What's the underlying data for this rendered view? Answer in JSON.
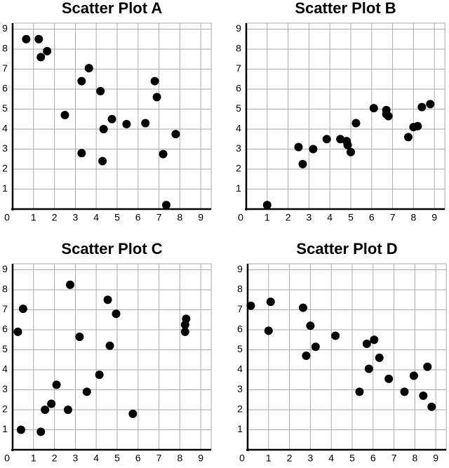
{
  "chart_data": [
    {
      "type": "scatter",
      "title": "Scatter Plot A",
      "x": [
        0.65,
        1.25,
        1.35,
        1.65,
        2.5,
        3.3,
        3.65,
        3.3,
        4.2,
        4.35,
        4.3,
        4.75,
        5.45,
        6.35,
        6.8,
        6.9,
        7.2,
        7.8,
        7.35
      ],
      "y": [
        8.5,
        8.5,
        7.6,
        7.9,
        4.7,
        6.4,
        7.05,
        2.8,
        5.9,
        4.0,
        2.4,
        4.5,
        4.25,
        4.3,
        6.4,
        5.6,
        2.75,
        3.75,
        0.2
      ],
      "color": "#000000",
      "xlim": [
        0,
        9.5
      ],
      "ylim": [
        0,
        9.3
      ],
      "xticks": [
        0,
        1,
        2,
        3,
        4,
        5,
        6,
        7,
        8,
        9
      ],
      "yticks": [
        1,
        2,
        3,
        4,
        5,
        6,
        7,
        8,
        9
      ],
      "grid": true
    },
    {
      "type": "scatter",
      "title": "Scatter Plot B",
      "x": [
        1.0,
        2.5,
        2.7,
        3.2,
        3.85,
        4.5,
        4.8,
        4.85,
        5.0,
        5.25,
        6.1,
        6.7,
        6.7,
        6.8,
        7.75,
        8.0,
        8.2,
        8.4,
        8.8
      ],
      "y": [
        0.2,
        3.1,
        2.25,
        3.0,
        3.5,
        3.5,
        3.4,
        3.2,
        2.85,
        4.3,
        5.05,
        4.95,
        4.75,
        4.65,
        3.6,
        4.1,
        4.15,
        5.1,
        5.25
      ],
      "color": "#000000",
      "xlim": [
        0,
        9.5
      ],
      "ylim": [
        0,
        9.3
      ],
      "xticks": [
        0,
        1,
        2,
        3,
        4,
        5,
        6,
        7,
        8,
        9
      ],
      "yticks": [
        1,
        2,
        3,
        4,
        5,
        6,
        7,
        8,
        9
      ],
      "grid": true
    },
    {
      "type": "scatter",
      "title": "Scatter Plot C",
      "x": [
        0.25,
        0.5,
        0.4,
        1.35,
        1.55,
        1.85,
        2.1,
        2.75,
        2.65,
        3.2,
        3.55,
        4.15,
        4.55,
        4.65,
        4.95,
        5.75,
        8.25,
        8.25,
        8.3
      ],
      "y": [
        5.9,
        7.05,
        1.0,
        0.9,
        2.0,
        2.3,
        3.25,
        8.25,
        2.0,
        5.65,
        2.9,
        3.75,
        7.5,
        5.2,
        6.8,
        1.8,
        5.9,
        6.25,
        6.55
      ],
      "color": "#000000",
      "xlim": [
        0,
        9.5
      ],
      "ylim": [
        0,
        9.3
      ],
      "xticks": [
        0,
        1,
        2,
        3,
        4,
        5,
        6,
        7,
        8,
        9
      ],
      "yticks": [
        1,
        2,
        3,
        4,
        5,
        6,
        7,
        8,
        9
      ],
      "grid": true
    },
    {
      "type": "scatter",
      "title": "Scatter Plot D",
      "x": [
        0.15,
        1.1,
        1.0,
        2.65,
        3.0,
        2.8,
        3.25,
        4.2,
        5.35,
        5.7,
        5.8,
        6.05,
        6.3,
        6.75,
        7.5,
        7.95,
        8.4,
        8.6,
        8.8
      ],
      "y": [
        7.2,
        7.4,
        5.95,
        7.1,
        6.2,
        4.7,
        5.15,
        5.7,
        2.9,
        5.3,
        4.05,
        5.5,
        4.6,
        3.55,
        2.9,
        3.7,
        2.7,
        4.15,
        2.15
      ],
      "color": "#000000",
      "xlim": [
        0,
        9.5
      ],
      "ylim": [
        0,
        9.3
      ],
      "xticks": [
        0,
        1,
        2,
        3,
        4,
        5,
        6,
        7,
        8,
        9
      ],
      "yticks": [
        1,
        2,
        3,
        4,
        5,
        6,
        7,
        8,
        9
      ],
      "grid": true
    }
  ]
}
